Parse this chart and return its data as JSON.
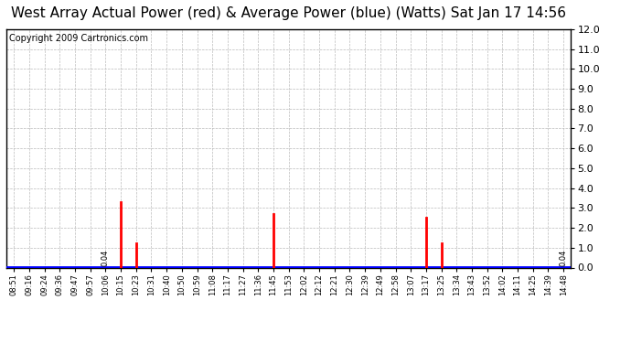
{
  "title": "West Array Actual Power (red) & Average Power (blue) (Watts) Sat Jan 17 14:56",
  "copyright": "Copyright 2009 Cartronics.com",
  "y_min": 0.0,
  "y_max": 12.0,
  "y_ticks": [
    0.0,
    1.0,
    2.0,
    3.0,
    4.0,
    5.0,
    6.0,
    7.0,
    8.0,
    9.0,
    10.0,
    11.0,
    12.0
  ],
  "x_labels": [
    "08:51",
    "09:16",
    "09:24",
    "09:36",
    "09:47",
    "09:57",
    "10:06",
    "10:15",
    "10:23",
    "10:31",
    "10:40",
    "10:50",
    "10:59",
    "11:08",
    "11:17",
    "11:27",
    "11:36",
    "11:45",
    "11:53",
    "12:02",
    "12:12",
    "12:21",
    "12:30",
    "12:39",
    "12:49",
    "12:58",
    "13:07",
    "13:17",
    "13:25",
    "13:34",
    "13:43",
    "13:52",
    "14:02",
    "14:11",
    "14:25",
    "14:39",
    "14:48"
  ],
  "red_spikes": {
    "10:15": 3.3,
    "10:23": 1.2,
    "11:45": 2.7,
    "13:17": 2.5,
    "13:25": 1.2
  },
  "blue_value": 0.04,
  "blue_color": "#0000ff",
  "red_color": "#ff0000",
  "bg_color": "#ffffff",
  "grid_color": "#bbbbbb",
  "title_fontsize": 11,
  "copyright_fontsize": 7,
  "annotation_left_label": "10:06",
  "annotation_right_label": "14:48",
  "annotation_text": "0.04"
}
